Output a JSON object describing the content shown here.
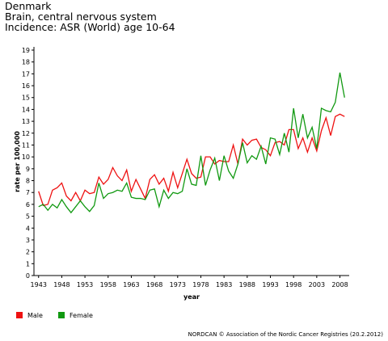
{
  "chart_data": {
    "type": "line",
    "title": [
      "Denmark",
      "Brain, central nervous system",
      "Incidence: ASR (World) age 10-64"
    ],
    "xlabel": "year",
    "ylabel": "rate per 100,000",
    "x": [
      1943,
      1944,
      1945,
      1946,
      1947,
      1948,
      1949,
      1950,
      1951,
      1952,
      1953,
      1954,
      1955,
      1956,
      1957,
      1958,
      1959,
      1960,
      1961,
      1962,
      1963,
      1964,
      1965,
      1966,
      1967,
      1968,
      1969,
      1970,
      1971,
      1972,
      1973,
      1974,
      1975,
      1976,
      1977,
      1978,
      1979,
      1980,
      1981,
      1982,
      1983,
      1984,
      1985,
      1986,
      1987,
      1988,
      1989,
      1990,
      1991,
      1992,
      1993,
      1994,
      1995,
      1996,
      1997,
      1998,
      1999,
      2000,
      2001,
      2002,
      2003,
      2004,
      2005,
      2006,
      2007,
      2008,
      2009
    ],
    "series": [
      {
        "name": "Male",
        "color": "#ee1111",
        "values": [
          7.1,
          5.9,
          6.0,
          7.2,
          7.4,
          7.8,
          6.7,
          6.3,
          7.0,
          6.3,
          7.2,
          6.9,
          7.0,
          8.3,
          7.7,
          8.1,
          9.1,
          8.4,
          8.0,
          8.9,
          7.1,
          8.1,
          7.3,
          6.5,
          8.1,
          8.5,
          7.7,
          8.2,
          7.1,
          8.7,
          7.4,
          8.6,
          9.8,
          8.6,
          8.2,
          8.3,
          10.0,
          10.0,
          9.4,
          9.7,
          9.6,
          9.6,
          11.0,
          9.4,
          11.5,
          11.0,
          11.4,
          11.5,
          10.8,
          10.6,
          10.1,
          11.2,
          11.3,
          11.0,
          12.3,
          12.3,
          10.7,
          11.6,
          10.4,
          11.6,
          10.5,
          12.2,
          13.3,
          11.8,
          13.4,
          13.6,
          13.4
        ]
      },
      {
        "name": "Female",
        "color": "#119911",
        "values": [
          5.8,
          6.0,
          5.5,
          6.0,
          5.7,
          6.4,
          5.8,
          5.3,
          5.8,
          6.3,
          5.8,
          5.4,
          5.9,
          7.8,
          6.5,
          6.9,
          7.0,
          7.2,
          7.1,
          7.8,
          6.6,
          6.5,
          6.5,
          6.4,
          7.2,
          7.3,
          5.8,
          7.2,
          6.5,
          7.0,
          6.9,
          7.1,
          9.0,
          7.7,
          7.6,
          10.1,
          7.6,
          8.9,
          9.9,
          8.0,
          10.1,
          8.8,
          8.2,
          9.4,
          11.2,
          9.5,
          10.1,
          9.8,
          10.9,
          9.4,
          11.6,
          11.5,
          10.2,
          12.0,
          10.4,
          14.1,
          11.6,
          13.6,
          11.6,
          12.5,
          10.7,
          14.1,
          13.9,
          13.8,
          14.6,
          17.1,
          15.0
        ]
      }
    ],
    "xlim": [
      1942,
      2010
    ],
    "xticks": [
      1943,
      1948,
      1953,
      1958,
      1963,
      1968,
      1973,
      1978,
      1983,
      1988,
      1993,
      1998,
      2003,
      2008
    ],
    "ylim": [
      0,
      19
    ],
    "yticks": [
      0,
      1,
      2,
      3,
      4,
      5,
      6,
      7,
      8,
      9,
      10,
      11,
      12,
      13,
      14,
      15,
      16,
      17,
      18,
      19
    ],
    "grid": false,
    "legend": "bottom-left",
    "footnote": "NORDCAN © Association of the Nordic Cancer Registries (20.2.2012)"
  }
}
